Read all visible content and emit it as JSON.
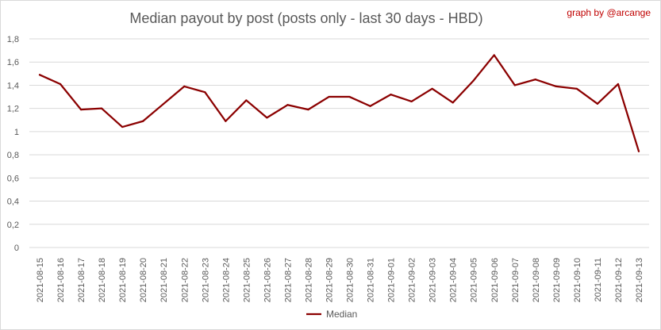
{
  "chart_data": {
    "type": "line",
    "title": "Median payout by post (posts only - last 30 days - HBD)",
    "credit": "graph by @arcange",
    "x": [
      "2021-08-15",
      "2021-08-16",
      "2021-08-17",
      "2021-08-18",
      "2021-08-19",
      "2021-08-20",
      "2021-08-21",
      "2021-08-22",
      "2021-08-23",
      "2021-08-24",
      "2021-08-25",
      "2021-08-26",
      "2021-08-27",
      "2021-08-28",
      "2021-08-29",
      "2021-08-30",
      "2021-08-31",
      "2021-09-01",
      "2021-09-02",
      "2021-09-03",
      "2021-09-04",
      "2021-09-05",
      "2021-09-06",
      "2021-09-07",
      "2021-09-08",
      "2021-09-09",
      "2021-09-10",
      "2021-09-11",
      "2021-09-12",
      "2021-09-13"
    ],
    "series": [
      {
        "name": "Median",
        "color": "#8b0000",
        "values": [
          1.49,
          1.41,
          1.19,
          1.2,
          1.04,
          1.09,
          1.24,
          1.39,
          1.34,
          1.09,
          1.27,
          1.12,
          1.23,
          1.19,
          1.3,
          1.3,
          1.22,
          1.32,
          1.26,
          1.37,
          1.25,
          1.44,
          1.66,
          1.4,
          1.45,
          1.39,
          1.37,
          1.24,
          1.41,
          0.83
        ]
      }
    ],
    "ylim": [
      0,
      1.8
    ],
    "yticks": [
      "0",
      "0,2",
      "0,4",
      "0,6",
      "0,8",
      "1",
      "1,2",
      "1,4",
      "1,6",
      "1,8"
    ],
    "grid": true,
    "legend": "bottom-center"
  }
}
